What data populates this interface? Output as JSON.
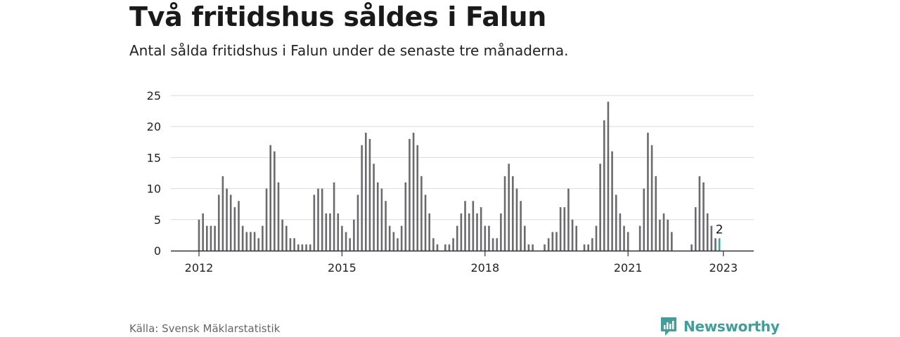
{
  "header": {
    "title": "Två fritidshus såldes i Falun",
    "subtitle": "Antal sålda fritidshus i Falun under de senaste tre månaderna."
  },
  "footer": {
    "source": "Källa: Svensk Mäklarstatistik",
    "brand": "Newsworthy",
    "brand_icon": "newsworthy-logo-icon"
  },
  "colors": {
    "bar": "#6b6b6f",
    "highlight": "#3aa6a0",
    "grid": "#d9d9d9",
    "axis": "#333333",
    "brand": "#3f9f99"
  },
  "chart_data": {
    "type": "bar",
    "title": "",
    "xlabel": "",
    "ylabel": "",
    "x_start": "2012-01",
    "x_ticks": [
      "2012",
      "2015",
      "2018",
      "2021",
      "2023"
    ],
    "y_ticks": [
      0,
      5,
      10,
      15,
      20,
      25
    ],
    "ylim": [
      0,
      25
    ],
    "grid": true,
    "values": [
      5,
      6,
      4,
      4,
      4,
      9,
      12,
      10,
      9,
      7,
      8,
      4,
      3,
      3,
      3,
      2,
      4,
      10,
      17,
      16,
      11,
      5,
      4,
      2,
      2,
      1,
      1,
      1,
      1,
      9,
      10,
      10,
      6,
      6,
      11,
      6,
      4,
      3,
      2,
      5,
      9,
      17,
      19,
      18,
      14,
      11,
      10,
      8,
      4,
      3,
      2,
      4,
      11,
      18,
      19,
      17,
      12,
      9,
      6,
      2,
      1,
      0,
      1,
      1,
      2,
      4,
      6,
      8,
      6,
      8,
      6,
      7,
      4,
      4,
      2,
      2,
      6,
      12,
      14,
      12,
      10,
      8,
      4,
      1,
      1,
      0,
      0,
      1,
      2,
      3,
      3,
      7,
      7,
      10,
      5,
      4,
      0,
      1,
      1,
      2,
      4,
      14,
      21,
      24,
      16,
      9,
      6,
      4,
      3,
      0,
      0,
      4,
      10,
      19,
      17,
      12,
      5,
      6,
      5,
      3,
      0,
      0,
      0,
      0,
      1,
      7,
      12,
      11,
      6,
      4,
      2,
      2
    ],
    "highlight_index": 131,
    "annotations": [
      {
        "index": 131,
        "text": "2"
      }
    ]
  }
}
